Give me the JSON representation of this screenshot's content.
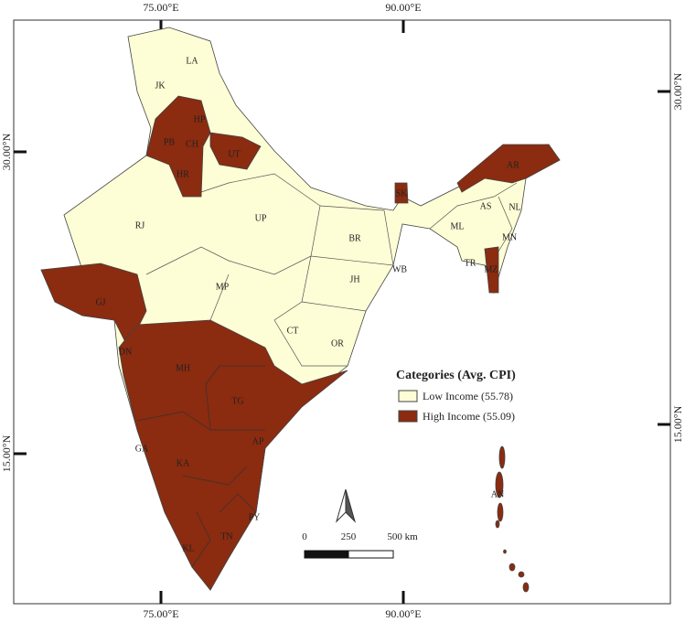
{
  "map": {
    "coordinate_labels": {
      "top": [
        "75.00°E",
        "90.00°E"
      ],
      "bottom": [
        "75.00°E",
        "90.00°E"
      ],
      "left": [
        "30.00°N",
        "15.00°N"
      ],
      "right": [
        "30.00°N",
        "15.00°N"
      ]
    },
    "legend": {
      "title": "Categories (Avg. CPI)",
      "items": [
        {
          "label": "Low Income (55.78)",
          "color": "#fefed6",
          "states": [
            "LA",
            "JK",
            "RJ",
            "UP",
            "BR",
            "AS",
            "NL",
            "ML",
            "MN",
            "TR",
            "WB",
            "JH",
            "MP",
            "CT",
            "OR"
          ]
        },
        {
          "label": "High Income (55.09)",
          "color": "#8b2b10",
          "states": [
            "HP",
            "PB",
            "CH",
            "HR",
            "UT",
            "SK",
            "AR",
            "MZ",
            "GJ",
            "DN",
            "MH",
            "TG",
            "AP",
            "GA",
            "KA",
            "PY",
            "TN",
            "KL",
            "AN"
          ]
        }
      ]
    },
    "scale_bar": {
      "labels": [
        "0",
        "250",
        "500 km"
      ]
    }
  }
}
